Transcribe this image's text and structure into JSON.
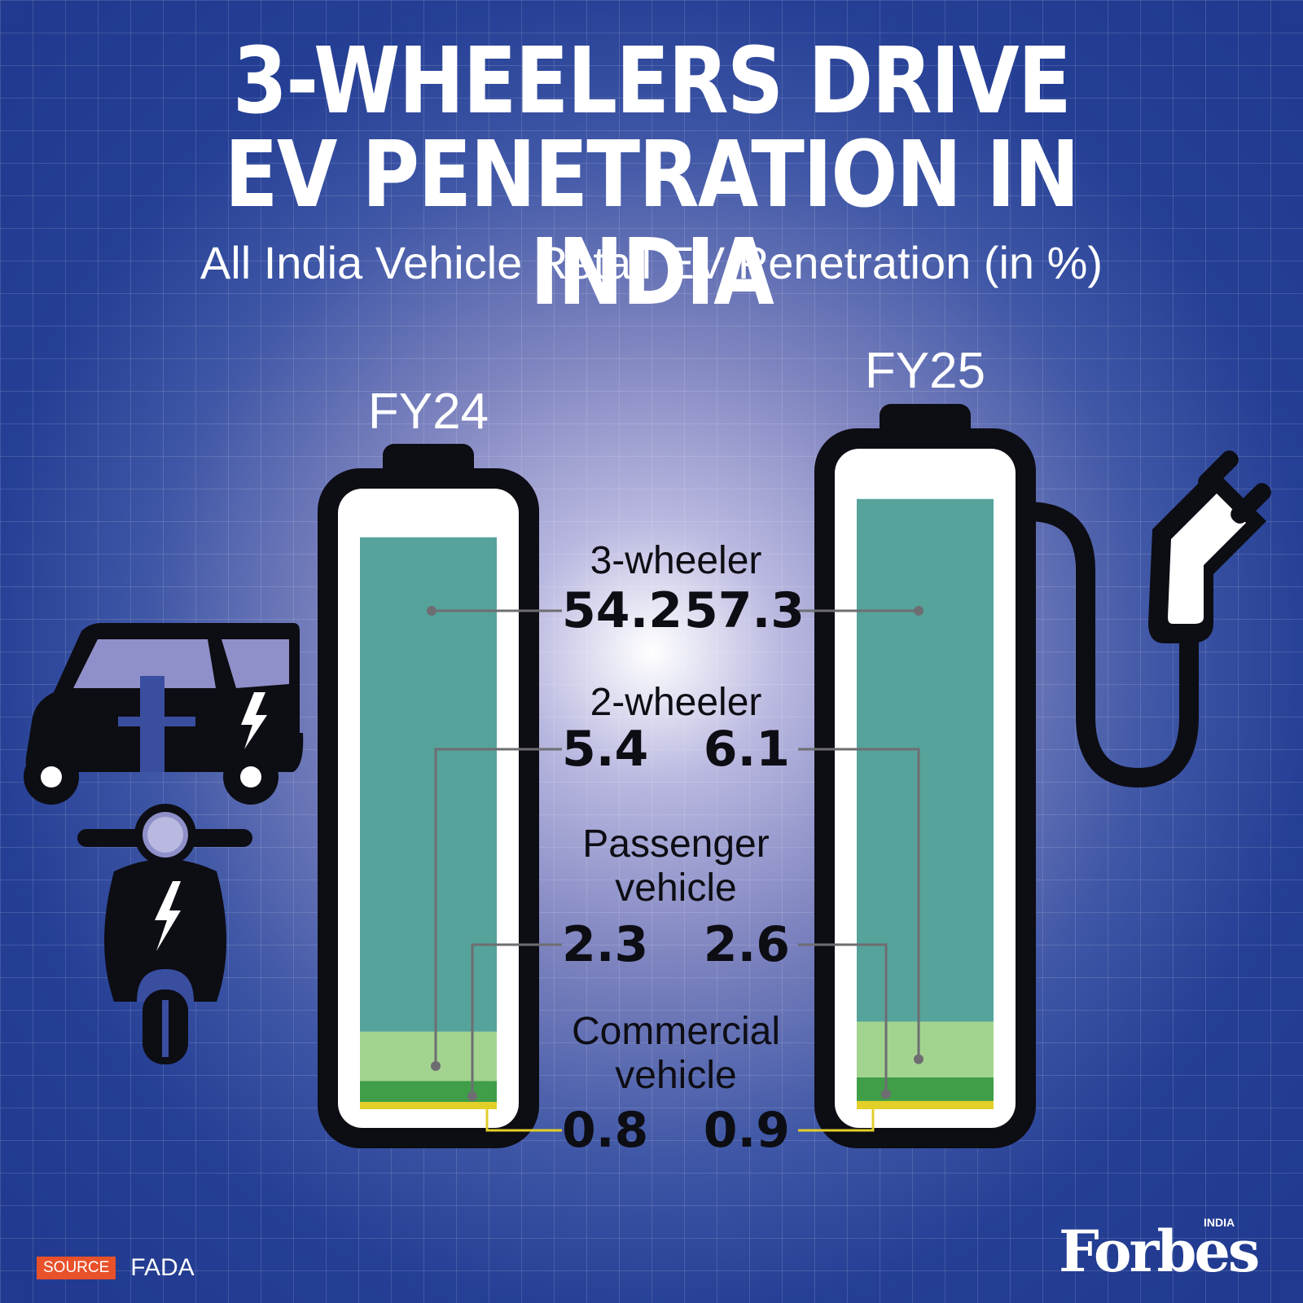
{
  "title_line1": "3-WHEELERS DRIVE",
  "title_line2": "EV PENETRATION IN INDIA",
  "subtitle": "All India Vehicle Retail EV Penetration (in %)",
  "source_label": "SOURCE",
  "source_name": "FADA",
  "logo_text": "Forbes",
  "logo_subtext": "INDIA",
  "icons": [
    "auto-rickshaw-icon",
    "electric-scooter-icon",
    "battery-icon",
    "ev-plug-icon",
    "lightning-bolt-icon"
  ],
  "colors": {
    "background": "#253f95",
    "three_wheeler": "#55a39b",
    "two_wheeler": "#a3d48f",
    "passenger_vehicle": "#3f9e47",
    "commercial_vehicle": "#e2cf28",
    "source_tag": "#e8512a"
  },
  "chart_data": {
    "type": "bar",
    "title": "3-WHEELERS DRIVE EV PENETRATION IN INDIA",
    "subtitle": "All India Vehicle Retail EV Penetration (in %)",
    "categories": [
      "FY24",
      "FY25"
    ],
    "series": [
      {
        "name": "3-wheeler",
        "values": [
          54.2,
          57.3
        ],
        "labels": [
          "54.2",
          "57.3"
        ]
      },
      {
        "name": "2-wheeler",
        "values": [
          5.4,
          6.1
        ],
        "labels": [
          "5.4",
          "6.1"
        ]
      },
      {
        "name": "Passenger vehicle",
        "values": [
          2.3,
          2.6
        ],
        "labels": [
          "2.3",
          "2.6"
        ]
      },
      {
        "name": "Commercial vehicle",
        "values": [
          0.8,
          0.9
        ],
        "labels": [
          "0.8",
          "0.9"
        ]
      }
    ],
    "display_lines": {
      "passenger": [
        "Passenger",
        "vehicle"
      ],
      "commercial": [
        "Commercial",
        "vehicle"
      ]
    }
  }
}
